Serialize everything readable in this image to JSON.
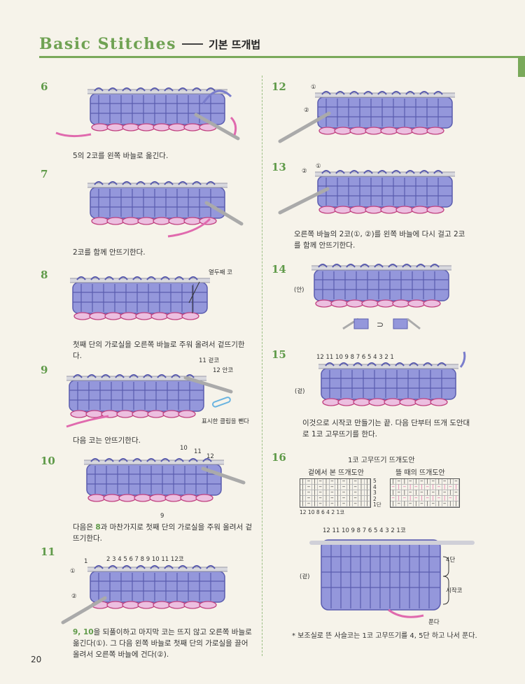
{
  "header": {
    "title_en": "Basic Stitches",
    "title_ko": "기본 뜨개법"
  },
  "page_number": "20",
  "steps": {
    "s6": {
      "num": "6",
      "caption": "5의 2코를 왼쪽 바늘로 옮긴다."
    },
    "s7": {
      "num": "7",
      "caption": "2코를 함께 안뜨기한다."
    },
    "s8": {
      "num": "8",
      "caption": "첫째 단의 가로실을 오른쪽 바늘로 주워 올려서 겉뜨기한다.",
      "label": "열두째 코"
    },
    "s9": {
      "num": "9",
      "caption": "다음 코는 안뜨기한다.",
      "label_11": "11 겉코",
      "label_12": "12 안코",
      "label_clip": "표시한 클립을 뺀다"
    },
    "s10": {
      "num": "10",
      "caption_pre": "다음은 ",
      "caption_hl": "8",
      "caption_post": "과 마찬가지로 첫째 단의 가로실을 주워 올려서 겉뜨기한다.",
      "n10": "10",
      "n11": "11",
      "n12": "12",
      "n9": "9"
    },
    "s11": {
      "num": "11",
      "caption_hl": "9, 10",
      "caption_post": "을 되풀이하고 마지막 코는 뜨지 않고 오른쪽 바늘로 옮긴다(①). 그 다음 왼쪽 바늘로 첫째 단의 가로실을 끌어올려서 오른쪽 바늘에 건다(②).",
      "n1": "1",
      "mark1": "①",
      "mark2": "②",
      "numbers": "2  3  4  5  6  7  8  9  10  11  12코"
    },
    "s12": {
      "num": "12",
      "mark1": "①",
      "mark2": "②"
    },
    "s13": {
      "num": "13",
      "mark1": "①",
      "mark2": "②",
      "caption": "오른쪽 바늘의 2코(①, ②)를 왼쪽 바늘에 다시 걸고 2코를 함께 안뜨기한다."
    },
    "s14": {
      "num": "14",
      "label_back": "(안)"
    },
    "s15": {
      "num": "15",
      "numbers": "12  11  10  9  8   7  6  5  4  3  2    1",
      "label_front": "(겉)",
      "caption": "이것으로 시작코 만들기는 끝. 다음 단부터 뜨개 도안대로 1코 고무뜨기를 한다."
    },
    "s16": {
      "num": "16",
      "chart_title": "1코 고무뜨기 뜨개도안",
      "chart_left_title": "겉에서 본 뜨개도안",
      "chart_right_title": "뜰 때의 뜨개도안",
      "row_labels": [
        "5",
        "4",
        "3",
        "2",
        "1단"
      ],
      "bottom_numbers": "12  10   8    6    4    2 1코",
      "numbers": "12  11  10  9  8   7  6  5  4  3  2    1코",
      "label_front": "(겉)",
      "label_rows": "4단",
      "label_cast": "시작코",
      "label_undo": "푼다",
      "note": "* 보조실로 뜬 사슬코는 1코 고무뜨기를 4, 5단 하고 나서 푼다."
    }
  },
  "colors": {
    "yarn_blue": "#8c8fd6",
    "yarn_pink": "#e06aae",
    "accent_green": "#6fa253"
  }
}
